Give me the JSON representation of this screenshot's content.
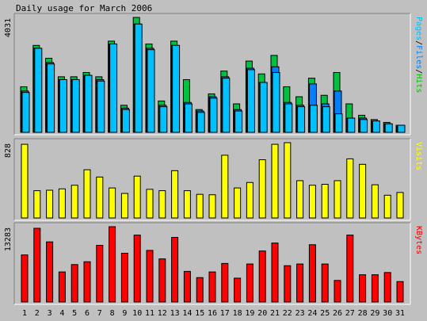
{
  "chart_data": {
    "type": "bar",
    "title": "Daily usage for March 2006",
    "categories": [
      "1",
      "2",
      "3",
      "4",
      "5",
      "6",
      "7",
      "8",
      "9",
      "10",
      "11",
      "12",
      "13",
      "14",
      "15",
      "16",
      "17",
      "18",
      "19",
      "20",
      "21",
      "22",
      "23",
      "24",
      "25",
      "26",
      "27",
      "28",
      "29",
      "30",
      "31"
    ],
    "weekend_days": [
      "4",
      "5",
      "11",
      "12",
      "18",
      "19",
      "25",
      "26"
    ],
    "panels": [
      {
        "max_label": "4031",
        "ylim": [
          0,
          4031
        ],
        "legend": [
          "Pages",
          "/",
          "Files",
          "/",
          "Hits"
        ],
        "legend_colors": [
          "#00c0ff",
          "#000000",
          "#0080ff",
          "#000000",
          "#00c000"
        ],
        "series": [
          {
            "name": "Hits",
            "color": "#00c040",
            "values": [
              1600,
              3050,
              2600,
              1950,
              1950,
              2100,
              1950,
              3200,
              950,
              4031,
              3100,
              1100,
              3200,
              1850,
              800,
              1350,
              2150,
              1000,
              2500,
              2050,
              2700,
              1600,
              1250,
              1900,
              1300,
              2100,
              1000,
              600,
              450,
              350,
              250
            ]
          },
          {
            "name": "Files",
            "color": "#0080ff",
            "values": [
              1450,
              2950,
              2450,
              1850,
              1850,
              2000,
              1850,
              3100,
              850,
              3800,
              2950,
              950,
              3050,
              1050,
              750,
              1250,
              1950,
              800,
              2250,
              1750,
              2300,
              1050,
              950,
              1700,
              1000,
              1450,
              500,
              500,
              400,
              300,
              200
            ]
          },
          {
            "name": "Pages",
            "color": "#00c0ff",
            "values": [
              1400,
              2950,
              2400,
              1850,
              1850,
              2000,
              1800,
              3100,
              800,
              3800,
              2900,
              900,
              3050,
              1000,
              700,
              1200,
              1900,
              750,
              2200,
              1750,
              2100,
              1000,
              900,
              950,
              900,
              650,
              500,
              450,
              400,
              300,
              250
            ]
          }
        ]
      },
      {
        "max_label": "828",
        "ylim": [
          0,
          828
        ],
        "legend": [
          "Visits"
        ],
        "legend_colors": [
          "#ffff00"
        ],
        "series": [
          {
            "name": "Visits",
            "color": "#ffff00",
            "values": [
              810,
              300,
              305,
              320,
              360,
              530,
              450,
              330,
              270,
              460,
              315,
              300,
              520,
              300,
              260,
              255,
              690,
              330,
              390,
              640,
              810,
              828,
              410,
              360,
              370,
              410,
              650,
              590,
              365,
              250,
              280
            ]
          }
        ]
      },
      {
        "max_label": "13283",
        "ylim": [
          0,
          13283
        ],
        "legend": [
          "KBytes"
        ],
        "legend_colors": [
          "#ff0000"
        ],
        "series": [
          {
            "name": "KBytes",
            "color": "#ff0000",
            "values": [
              8300,
              13000,
              10600,
              5300,
              6600,
              7100,
              10000,
              13283,
              8600,
              11800,
              9100,
              7600,
              11400,
              5400,
              4300,
              5300,
              6800,
              4200,
              6700,
              9000,
              10400,
              6400,
              6700,
              10100,
              6700,
              3800,
              11800,
              4800,
              4800,
              5200,
              3600
            ]
          }
        ]
      }
    ]
  }
}
